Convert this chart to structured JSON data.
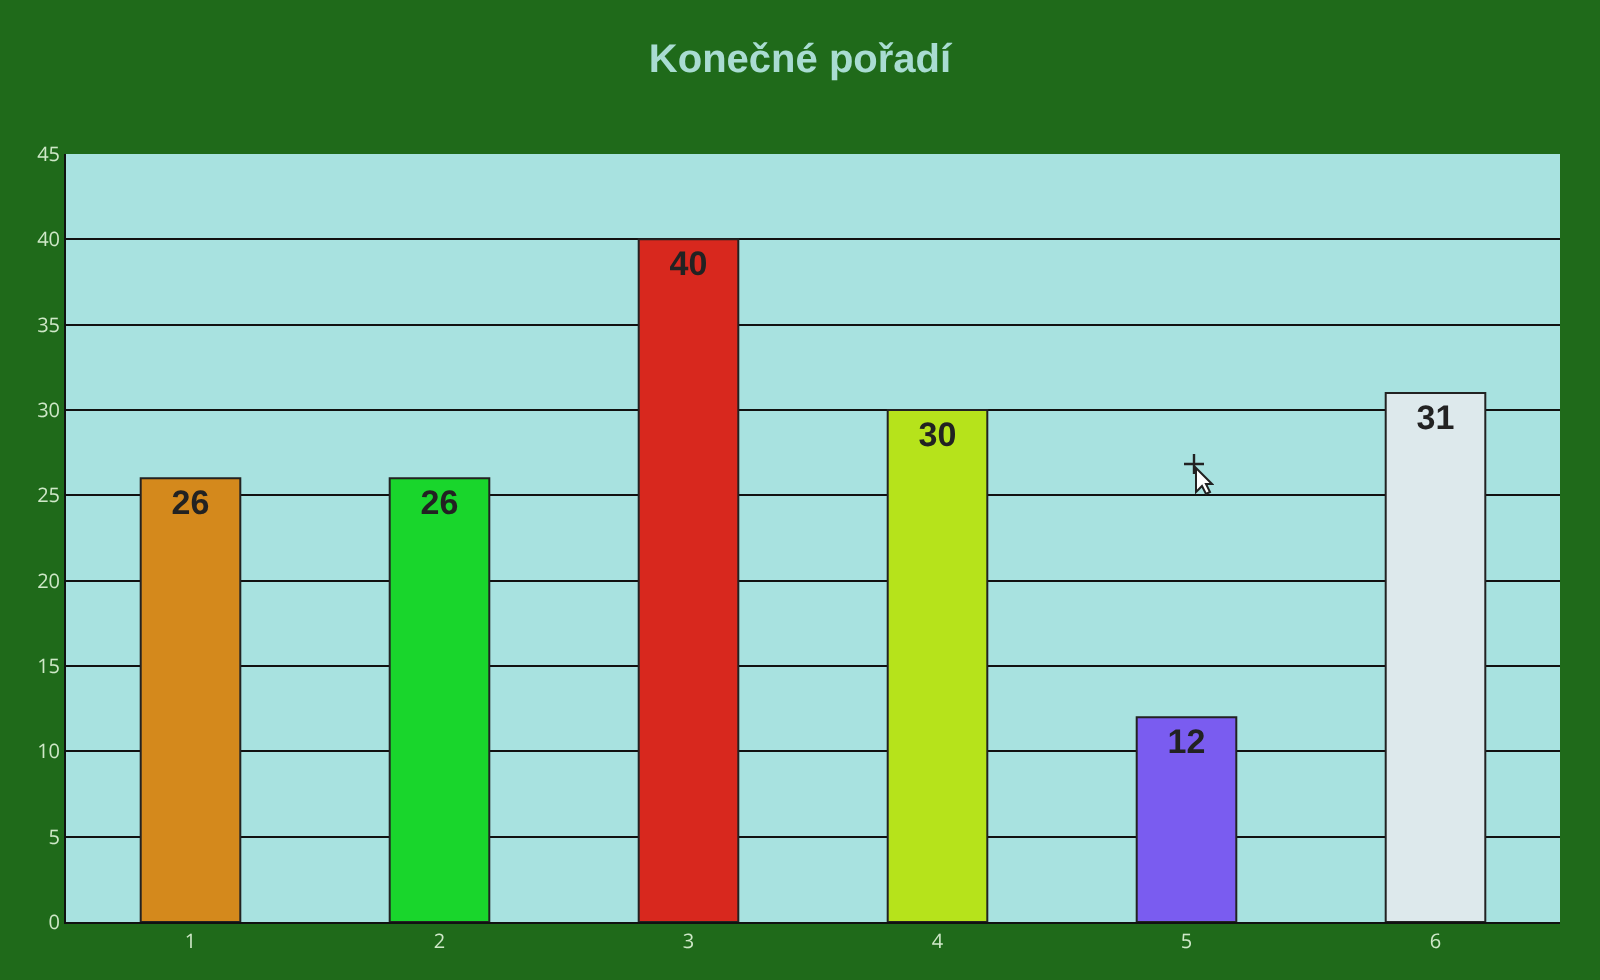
{
  "chart_data": {
    "type": "bar",
    "title": "Konečné pořadí",
    "categories": [
      "1",
      "2",
      "3",
      "4",
      "5",
      "6"
    ],
    "values": [
      26,
      26,
      40,
      30,
      12,
      31
    ],
    "colors": [
      "#d4891c",
      "#19d62c",
      "#d8281e",
      "#b6e31b",
      "#7a5cf0",
      "#dde9ec"
    ],
    "ylim": [
      0,
      45
    ],
    "yticks": [
      0,
      5,
      10,
      15,
      20,
      25,
      30,
      35,
      40,
      45
    ],
    "grid": "y",
    "data_labels": true
  }
}
